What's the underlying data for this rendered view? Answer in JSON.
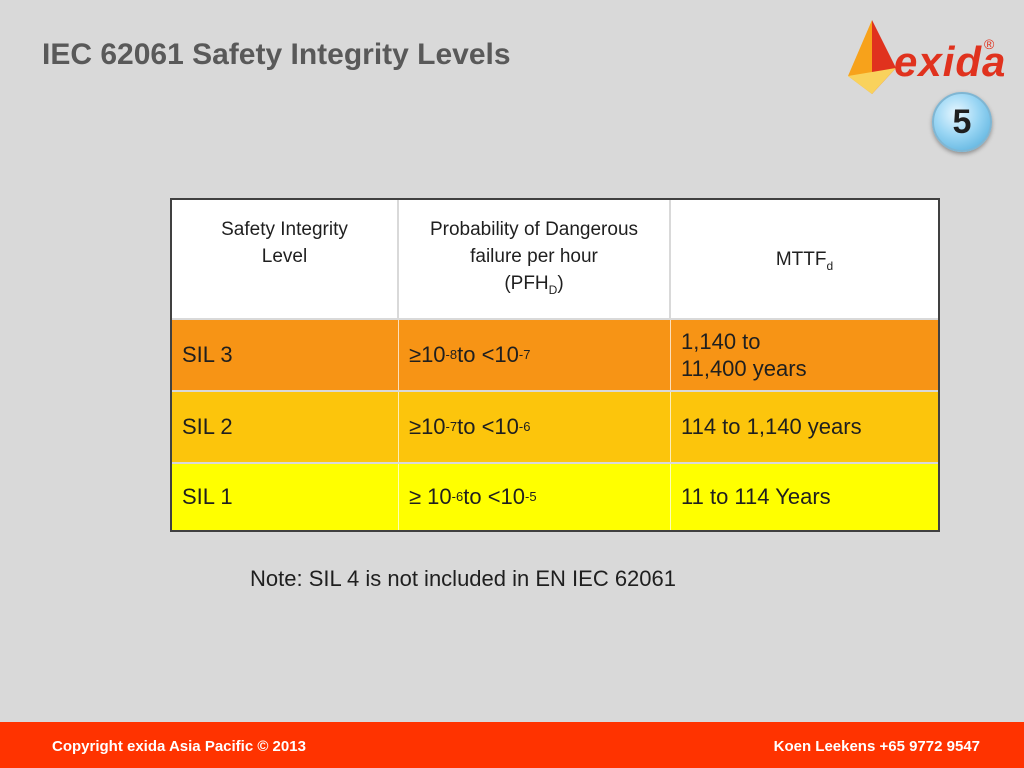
{
  "slide": {
    "title": "IEC 62061 Safety Integrity Levels",
    "page_number": "5",
    "note": "Note: SIL 4 is not included in EN IEC 62061"
  },
  "logo": {
    "text": "exida",
    "registered": "®"
  },
  "table": {
    "headers": {
      "sil_line1": "Safety Integrity",
      "sil_line2": "Level",
      "pfh_line1": "Probability of Dangerous",
      "pfh_line2": "failure per hour",
      "pfh_line3_main": "(PFH",
      "pfh_line3_sub": "D",
      "pfh_line3_end": ")",
      "mttf_main": "MTTF",
      "mttf_sub": "d"
    },
    "rows": [
      {
        "sil": "SIL 3",
        "pfh_a": "≥10",
        "pfh_a_exp": "-8",
        "pfh_mid": " to <10",
        "pfh_b_exp": "-7",
        "mttf_line1": "1,140 to",
        "mttf_line2": "11,400 years"
      },
      {
        "sil": "SIL 2",
        "pfh_a": "≥10",
        "pfh_a_exp": "-7",
        "pfh_mid": " to <10",
        "pfh_b_exp": "-6",
        "mttf": "114 to 1,140 years"
      },
      {
        "sil": "SIL 1",
        "pfh_a": "≥ 10",
        "pfh_a_exp": "-6",
        "pfh_mid": " to <10",
        "pfh_b_exp": "-5",
        "mttf": "11 to 114 Years"
      }
    ]
  },
  "footer": {
    "left": "Copyright exida Asia Pacific © 2013",
    "right": "Koen Leekens +65 9772 9547"
  },
  "colors": {
    "sil3": "#f79415",
    "sil2": "#fcc50c",
    "sil1": "#ffff00",
    "footer": "#ff3300",
    "logo": "#e0321e"
  }
}
